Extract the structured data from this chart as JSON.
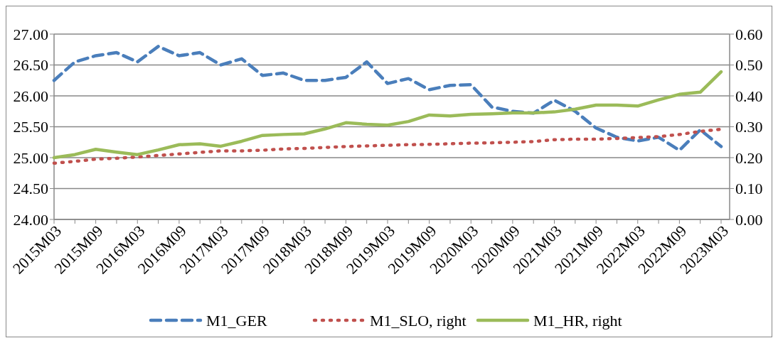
{
  "chart_data": {
    "type": "line",
    "categories": [
      "2015M03",
      null,
      "2015M09",
      null,
      "2016M03",
      null,
      "2016M09",
      null,
      "2017M03",
      null,
      "2017M09",
      null,
      "2018M03",
      null,
      "2018M09",
      null,
      "2019M03",
      null,
      "2019M09",
      null,
      "2020M03",
      null,
      "2020M09",
      null,
      "2021M03",
      null,
      "2021M09",
      null,
      "2022M03",
      null,
      "2022M09",
      null,
      "2023M03"
    ],
    "series": [
      {
        "name": "M1_GER",
        "color": "#4a7ebb",
        "line_style": "dashed",
        "values": [
          26.25,
          26.55,
          26.65,
          26.7,
          26.55,
          26.8,
          26.65,
          26.7,
          26.5,
          26.6,
          26.33,
          26.37,
          26.25,
          26.25,
          26.3,
          26.55,
          26.2,
          26.28,
          26.1,
          26.17,
          26.18,
          25.82,
          25.75,
          25.72,
          25.93,
          25.75,
          25.48,
          25.33,
          25.27,
          25.33,
          25.12,
          25.45,
          25.18
        ]
      },
      {
        "name": "M1_SLO, right",
        "color": "#c0504d",
        "line_style": "dotted",
        "axis": "y2",
        "values": [
          0.182,
          0.188,
          0.195,
          0.198,
          0.202,
          0.207,
          0.212,
          0.217,
          0.222,
          0.222,
          0.224,
          0.228,
          0.23,
          0.233,
          0.236,
          0.238,
          0.24,
          0.242,
          0.243,
          0.245,
          0.247,
          0.248,
          0.25,
          0.252,
          0.258,
          0.26,
          0.26,
          0.262,
          0.265,
          0.268,
          0.275,
          0.285,
          0.292
        ]
      },
      {
        "name": "M1_HR, right",
        "color": "#9bbb59",
        "line_style": "solid",
        "axis": "y2",
        "values": [
          0.2,
          0.21,
          0.227,
          0.218,
          0.21,
          0.225,
          0.242,
          0.245,
          0.237,
          0.253,
          0.272,
          0.275,
          0.277,
          0.293,
          0.313,
          0.308,
          0.305,
          0.317,
          0.338,
          0.335,
          0.34,
          0.342,
          0.345,
          0.345,
          0.348,
          0.357,
          0.37,
          0.37,
          0.367,
          0.387,
          0.405,
          0.412,
          0.478
        ]
      }
    ],
    "ylim": [
      24,
      27
    ],
    "yticks": [
      {
        "value": 24,
        "label": "24.00"
      },
      {
        "value": 24.5,
        "label": "24.50"
      },
      {
        "value": 25,
        "label": "25.00"
      },
      {
        "value": 25.5,
        "label": "25.50"
      },
      {
        "value": 26,
        "label": "26.00"
      },
      {
        "value": 26.5,
        "label": "26.50"
      },
      {
        "value": 27,
        "label": "27.00"
      }
    ],
    "y2lim": [
      0,
      0.6
    ],
    "y2ticks": [
      {
        "value": 0,
        "label": "0.00"
      },
      {
        "value": 0.1,
        "label": "0.10"
      },
      {
        "value": 0.2,
        "label": "0.20"
      },
      {
        "value": 0.3,
        "label": "0.30"
      },
      {
        "value": 0.4,
        "label": "0.40"
      },
      {
        "value": 0.5,
        "label": "0.50"
      },
      {
        "value": 0.6,
        "label": "0.60"
      }
    ],
    "grid": "y",
    "legend": "bottom"
  }
}
